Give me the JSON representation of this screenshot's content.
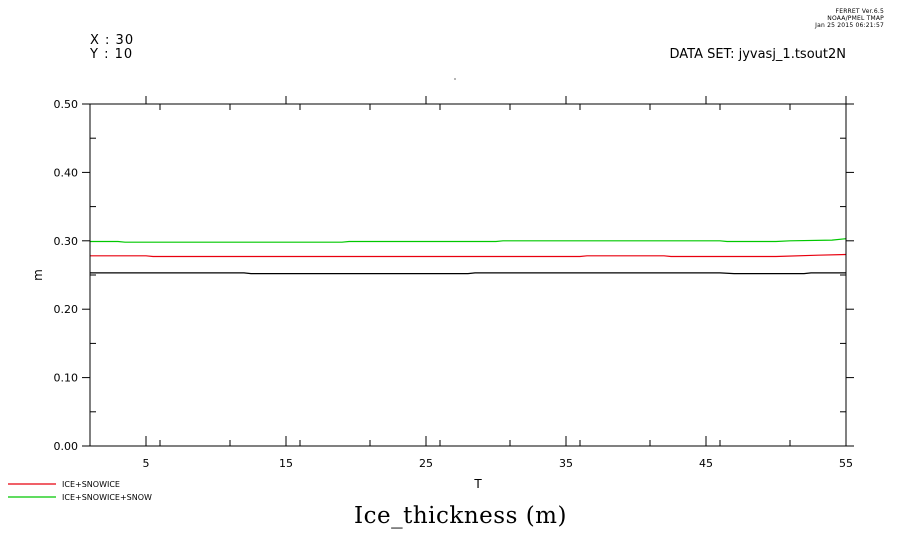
{
  "header": {
    "stamp_line1": "FERRET  Ver.6.5",
    "stamp_line2": "NOAA/PMEL TMAP",
    "stamp_line3": "Jan 25 2015 06:21:57",
    "x_info": "X : 30",
    "y_info": "Y : 10",
    "dataset": "DATA SET: jyvasj_1.tsout2N"
  },
  "chart_data": {
    "type": "line",
    "title": "Ice_thickness (m)",
    "xlabel": "T",
    "ylabel": "m",
    "xlim": [
      1,
      55
    ],
    "ylim": [
      0.0,
      0.5
    ],
    "xticks": [
      5,
      15,
      25,
      35,
      45,
      55
    ],
    "xtick_labels": [
      "5",
      "15",
      "25",
      "35",
      "45",
      "55"
    ],
    "yticks": [
      0.0,
      0.1,
      0.2,
      0.3,
      0.4,
      0.5
    ],
    "ytick_labels": [
      "0.00",
      "0.10",
      "0.20",
      "0.30",
      "0.40",
      "0.50"
    ],
    "legend_placement": "bottom-left",
    "series": [
      {
        "color": "#000000",
        "x": [
          1,
          5,
          12,
          12.5,
          20,
          28,
          28.5,
          35,
          46,
          47,
          52,
          52.5,
          55
        ],
        "y": [
          0.253,
          0.253,
          0.253,
          0.252,
          0.252,
          0.252,
          0.253,
          0.253,
          0.253,
          0.252,
          0.252,
          0.253,
          0.253
        ]
      },
      {
        "name": "ICE+SNOWICE",
        "color": "#e8000f",
        "x": [
          1,
          5,
          5.5,
          20,
          36,
          36.5,
          42,
          42.5,
          50,
          53,
          55
        ],
        "y": [
          0.278,
          0.278,
          0.277,
          0.277,
          0.277,
          0.278,
          0.278,
          0.277,
          0.277,
          0.279,
          0.28
        ]
      },
      {
        "name": "ICE+SNOWICE+SNOW",
        "color": "#00c800",
        "x": [
          1,
          3,
          3.5,
          19,
          19.5,
          30,
          30.5,
          46,
          46.5,
          50,
          51,
          54,
          55
        ],
        "y": [
          0.299,
          0.299,
          0.298,
          0.298,
          0.299,
          0.299,
          0.3,
          0.3,
          0.299,
          0.299,
          0.3,
          0.301,
          0.303
        ]
      }
    ]
  }
}
